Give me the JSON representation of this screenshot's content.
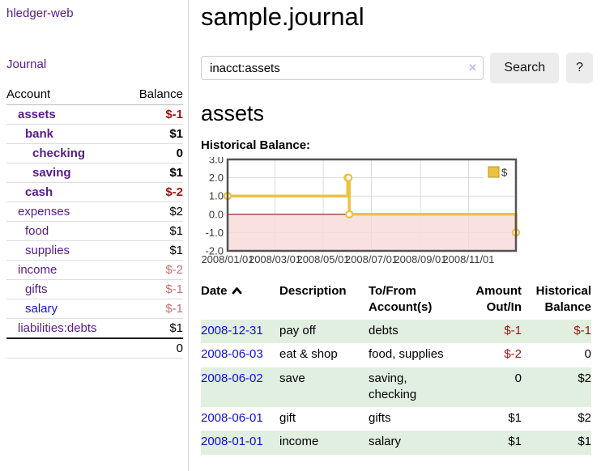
{
  "app": {
    "title": "hledger-web"
  },
  "sidebar": {
    "nav_journal": "Journal",
    "accounts": {
      "header_account": "Account",
      "header_balance": "Balance",
      "rows": [
        {
          "name": "assets",
          "balance": "$-1"
        },
        {
          "name": "bank",
          "balance": "$1"
        },
        {
          "name": "checking",
          "balance": "0"
        },
        {
          "name": "saving",
          "balance": "$1"
        },
        {
          "name": "cash",
          "balance": "$-2"
        },
        {
          "name": "expenses",
          "balance": "$2"
        },
        {
          "name": "food",
          "balance": "$1"
        },
        {
          "name": "supplies",
          "balance": "$1"
        },
        {
          "name": "income",
          "balance": "$-2"
        },
        {
          "name": "gifts",
          "balance": "$-1"
        },
        {
          "name": "salary",
          "balance": "$-1"
        },
        {
          "name": "liabilities:debts",
          "balance": "$1"
        }
      ],
      "total": "0"
    }
  },
  "main": {
    "title": "sample.journal",
    "search": {
      "value": "inacct:assets",
      "clear_icon": "×",
      "button_label": "Search",
      "help_label": "?"
    },
    "account_heading": "assets"
  },
  "register": {
    "headers": {
      "date": "Date",
      "description": "Description",
      "accounts": "To/From Account(s)",
      "amount": "Amount Out/In",
      "balance": "Historical Balance"
    },
    "rows": [
      {
        "date": "2008-12-31",
        "description": "pay off",
        "accounts": "debts",
        "amount": "$-1",
        "balance": "$-1"
      },
      {
        "date": "2008-06-03",
        "description": "eat & shop",
        "accounts": "food, supplies",
        "amount": "$-2",
        "balance": "0"
      },
      {
        "date": "2008-06-02",
        "description": "save",
        "accounts": "saving, checking",
        "amount": "0",
        "balance": "$2"
      },
      {
        "date": "2008-06-01",
        "description": "gift",
        "accounts": "gifts",
        "amount": "$1",
        "balance": "$2"
      },
      {
        "date": "2008-01-01",
        "description": "income",
        "accounts": "salary",
        "amount": "$1",
        "balance": "$1"
      }
    ]
  },
  "chart_data": {
    "type": "line",
    "step": true,
    "title": "Historical Balance:",
    "series": [
      {
        "name": "$",
        "color": "#edc240",
        "points": [
          {
            "date": "2008-01-01",
            "day": 0,
            "value": 1
          },
          {
            "date": "2008-06-01",
            "day": 152,
            "value": 2
          },
          {
            "date": "2008-06-02",
            "day": 153,
            "value": 2
          },
          {
            "date": "2008-06-03",
            "day": 154,
            "value": 0
          },
          {
            "date": "2008-12-31",
            "day": 365,
            "value": -1
          }
        ]
      }
    ],
    "x_domain_days": [
      0,
      365
    ],
    "x_ticks": [
      {
        "label": "2008/01/01",
        "day": 0
      },
      {
        "label": "2008/03/01",
        "day": 60
      },
      {
        "label": "2008/05/01",
        "day": 121
      },
      {
        "label": "2008/07/01",
        "day": 182
      },
      {
        "label": "2008/09/01",
        "day": 244
      },
      {
        "label": "2008/11/01",
        "day": 305
      }
    ],
    "y_ticks": [
      3.0,
      2.0,
      1.0,
      0.0,
      -1.0,
      -2.0
    ],
    "ylim": [
      -2,
      3
    ],
    "grid": true,
    "negative_region_color": "#f9d9d9",
    "zero_line_color": "#8b1a1a",
    "plot_border_color": "#545454",
    "legend": {
      "label": "$",
      "position": "top-right"
    }
  }
}
